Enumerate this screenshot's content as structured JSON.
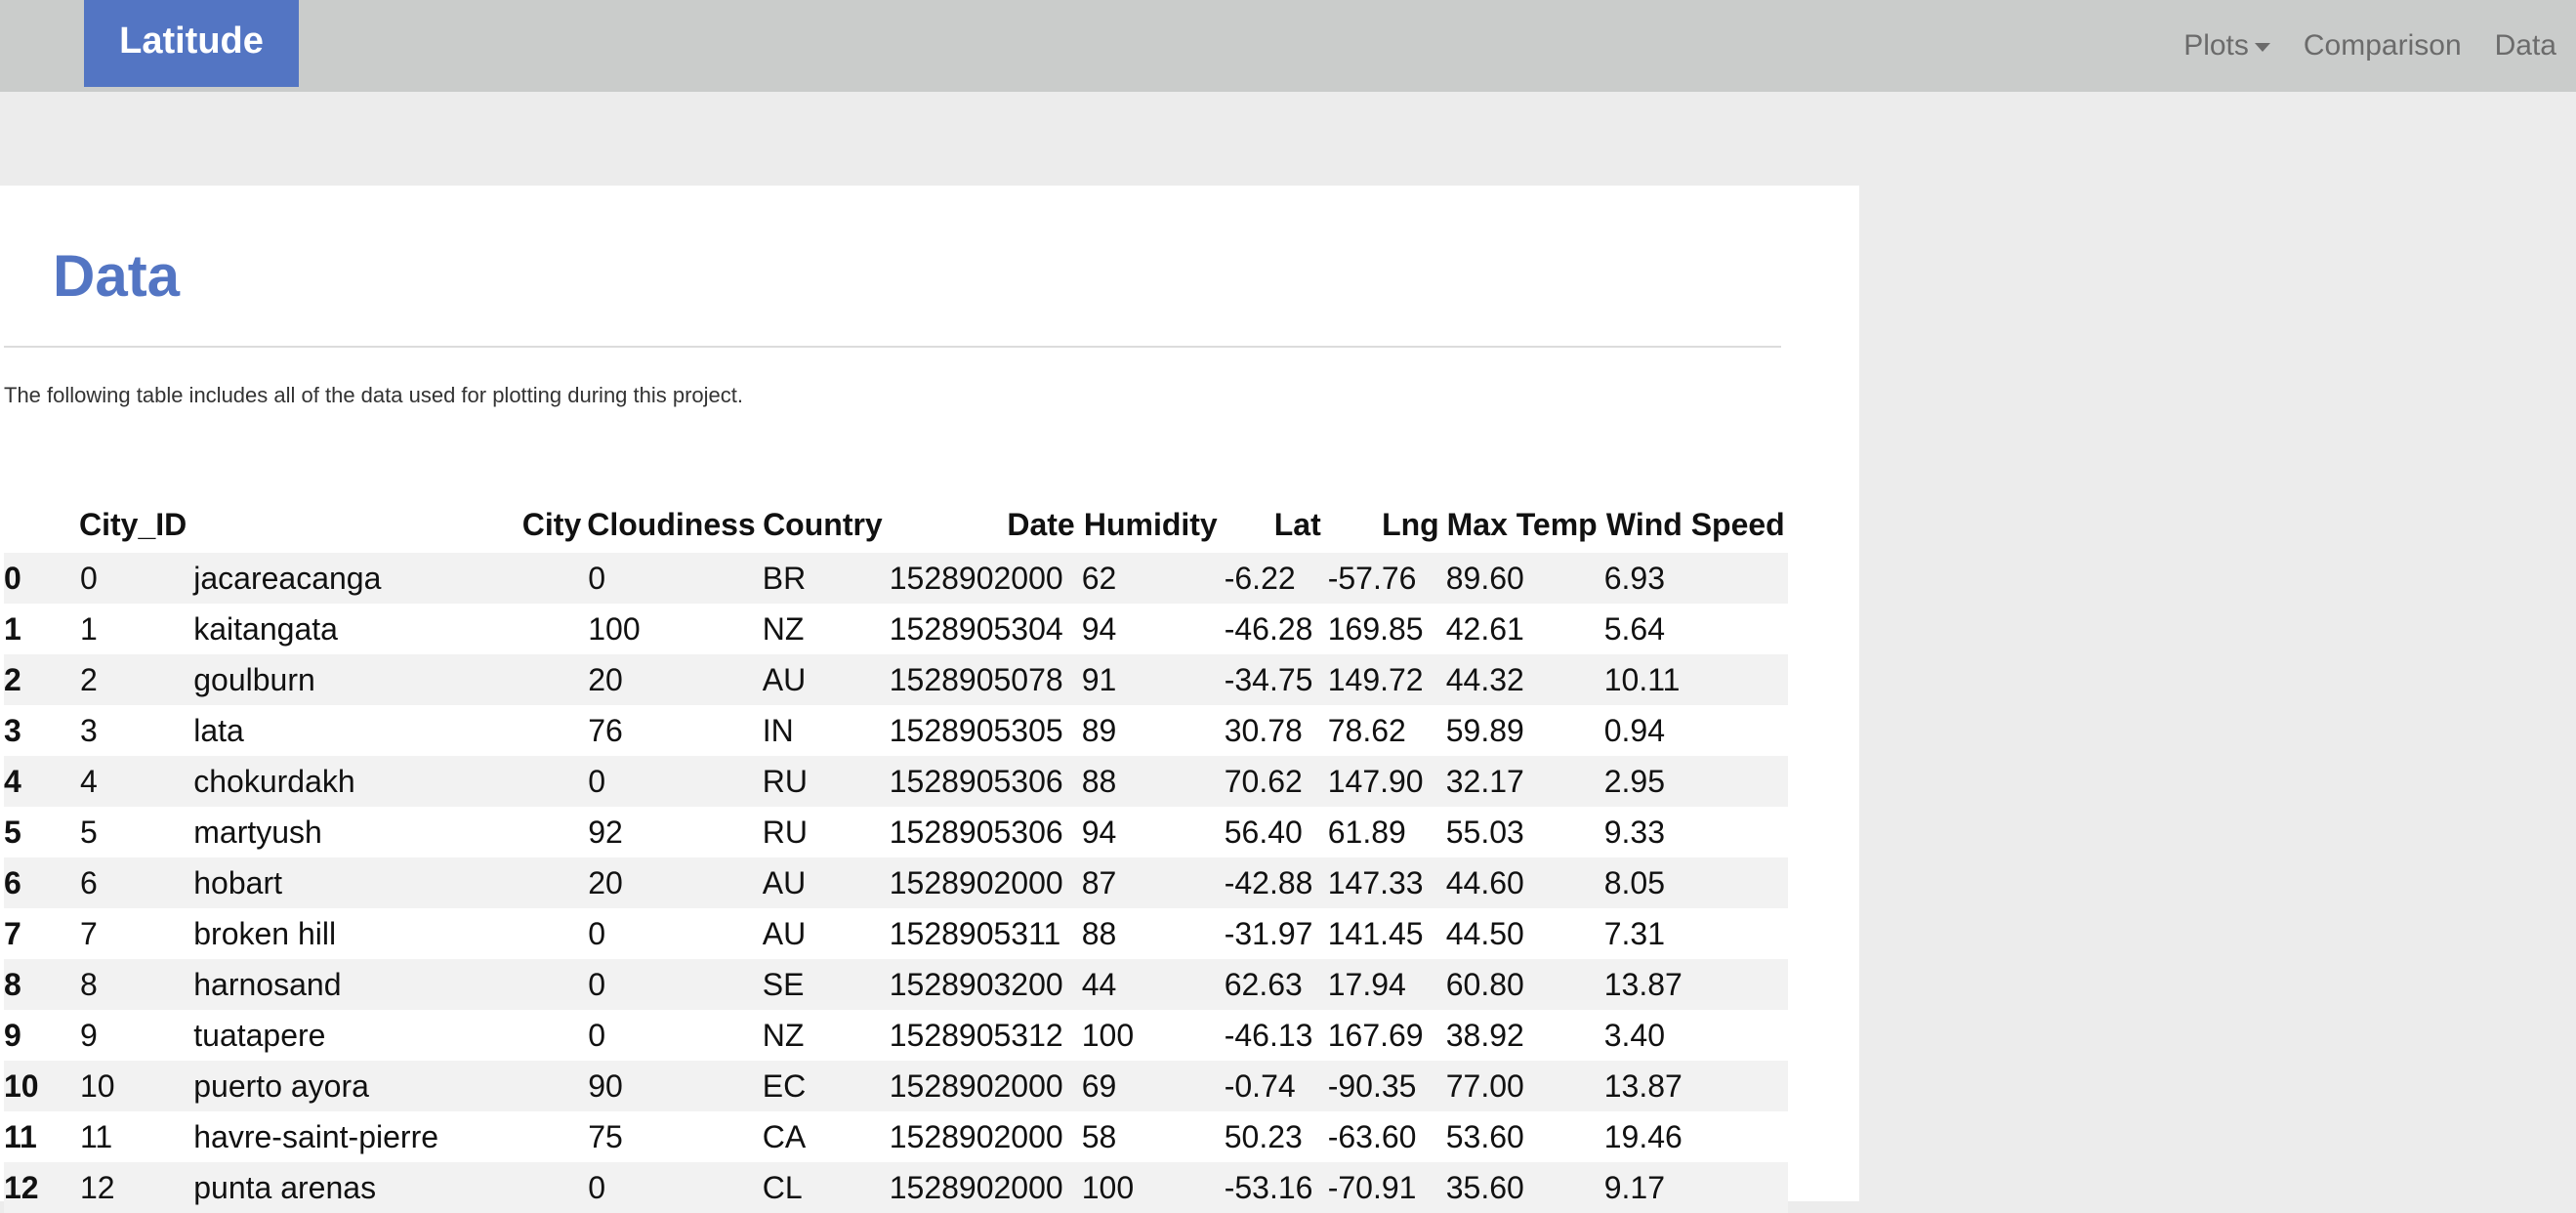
{
  "navbar": {
    "brand": "Latitude",
    "links": {
      "plots": "Plots",
      "comparison": "Comparison",
      "data": "Data"
    }
  },
  "page": {
    "title": "Data",
    "description": "The following table includes all of the data used for plotting during this project."
  },
  "table": {
    "columns": [
      "",
      "City_ID",
      "City",
      "Cloudiness",
      "Country",
      "Date",
      "Humidity",
      "Lat",
      "Lng",
      "Max Temp",
      "Wind Speed"
    ],
    "rows": [
      [
        "0",
        "0",
        "jacareacanga",
        "0",
        "BR",
        "1528902000",
        "62",
        "-6.22",
        "-57.76",
        "89.60",
        "6.93"
      ],
      [
        "1",
        "1",
        "kaitangata",
        "100",
        "NZ",
        "1528905304",
        "94",
        "-46.28",
        "169.85",
        "42.61",
        "5.64"
      ],
      [
        "2",
        "2",
        "goulburn",
        "20",
        "AU",
        "1528905078",
        "91",
        "-34.75",
        "149.72",
        "44.32",
        "10.11"
      ],
      [
        "3",
        "3",
        "lata",
        "76",
        "IN",
        "1528905305",
        "89",
        "30.78",
        "78.62",
        "59.89",
        "0.94"
      ],
      [
        "4",
        "4",
        "chokurdakh",
        "0",
        "RU",
        "1528905306",
        "88",
        "70.62",
        "147.90",
        "32.17",
        "2.95"
      ],
      [
        "5",
        "5",
        "martyush",
        "92",
        "RU",
        "1528905306",
        "94",
        "56.40",
        "61.89",
        "55.03",
        "9.33"
      ],
      [
        "6",
        "6",
        "hobart",
        "20",
        "AU",
        "1528902000",
        "87",
        "-42.88",
        "147.33",
        "44.60",
        "8.05"
      ],
      [
        "7",
        "7",
        "broken hill",
        "0",
        "AU",
        "1528905311",
        "88",
        "-31.97",
        "141.45",
        "44.50",
        "7.31"
      ],
      [
        "8",
        "8",
        "harnosand",
        "0",
        "SE",
        "1528903200",
        "44",
        "62.63",
        "17.94",
        "60.80",
        "13.87"
      ],
      [
        "9",
        "9",
        "tuatapere",
        "0",
        "NZ",
        "1528905312",
        "100",
        "-46.13",
        "167.69",
        "38.92",
        "3.40"
      ],
      [
        "10",
        "10",
        "puerto ayora",
        "90",
        "EC",
        "1528902000",
        "69",
        "-0.74",
        "-90.35",
        "77.00",
        "13.87"
      ],
      [
        "11",
        "11",
        "havre-saint-pierre",
        "75",
        "CA",
        "1528902000",
        "58",
        "50.23",
        "-63.60",
        "53.60",
        "19.46"
      ],
      [
        "12",
        "12",
        "punta arenas",
        "0",
        "CL",
        "1528902000",
        "100",
        "-53.16",
        "-70.91",
        "35.60",
        "9.17"
      ]
    ]
  }
}
